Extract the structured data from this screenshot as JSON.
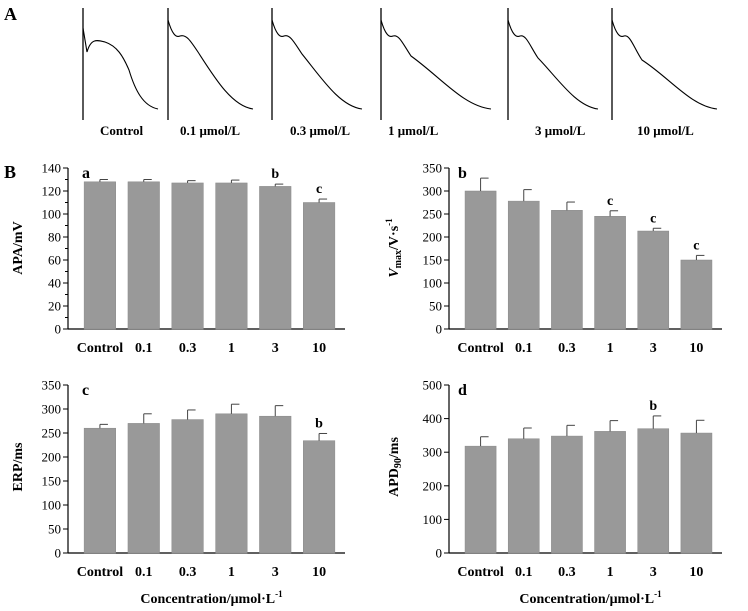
{
  "figure": {
    "panel_a_label": "A",
    "panel_b_label": "B"
  },
  "traces": {
    "labels": [
      "Control",
      "0.1 μmol/L",
      "0.3 μmol/L",
      "1 μmol/L",
      "3 μmol/L",
      "10 μmol/L"
    ]
  },
  "chart_data": [
    {
      "type": "bar",
      "panel": "a",
      "categories": [
        "Control",
        "0.1",
        "0.3",
        "1",
        "3",
        "10"
      ],
      "values": [
        128,
        128,
        127,
        127,
        124,
        110
      ],
      "errors": [
        2,
        2,
        2,
        2.5,
        2,
        3
      ],
      "significance": [
        "",
        "",
        "",
        "",
        "b",
        "c"
      ],
      "ylabel": "APA/mV",
      "xlabel": "",
      "ylim": [
        0,
        140
      ],
      "yticks": [
        0,
        10,
        20,
        30,
        40,
        50,
        60,
        70,
        80,
        90,
        100,
        110,
        120,
        130,
        140
      ],
      "ytick_labels": [
        "0",
        "",
        "20",
        "",
        "40",
        "",
        "60",
        "",
        "80",
        "",
        "100",
        "",
        "120",
        "",
        "140"
      ],
      "bar_color": "#999999"
    },
    {
      "type": "bar",
      "panel": "b",
      "categories": [
        "Control",
        "0.1",
        "0.3",
        "1",
        "3",
        "10"
      ],
      "values": [
        300,
        278,
        258,
        245,
        213,
        150
      ],
      "errors": [
        28,
        25,
        18,
        12,
        6,
        10
      ],
      "significance": [
        "",
        "",
        "",
        "c",
        "c",
        "c"
      ],
      "ylabel_main": "V",
      "ylabel_sub": "max",
      "ylabel_rest": "/V·s",
      "ylabel_sup": "-1",
      "xlabel": "",
      "ylim": [
        0,
        350
      ],
      "yticks": [
        0,
        50,
        100,
        150,
        200,
        250,
        300,
        350
      ],
      "ytick_labels": [
        "0",
        "50",
        "100",
        "150",
        "200",
        "250",
        "300",
        "350"
      ],
      "bar_color": "#999999"
    },
    {
      "type": "bar",
      "panel": "c",
      "categories": [
        "Control",
        "0.1",
        "0.3",
        "1",
        "3",
        "10"
      ],
      "values": [
        260,
        270,
        278,
        290,
        285,
        234
      ],
      "errors": [
        8,
        20,
        20,
        20,
        22,
        15
      ],
      "significance": [
        "",
        "",
        "",
        "",
        "",
        "b"
      ],
      "ylabel": "ERP/ms",
      "xlabel": "Concentration/μmol·L",
      "xlabel_sup": "-1",
      "ylim": [
        0,
        350
      ],
      "yticks": [
        0,
        50,
        100,
        150,
        200,
        250,
        300,
        350
      ],
      "ytick_labels": [
        "0",
        "50",
        "100",
        "150",
        "200",
        "250",
        "300",
        "350"
      ],
      "bar_color": "#999999"
    },
    {
      "type": "bar",
      "panel": "d",
      "categories": [
        "Control",
        "0.1",
        "0.3",
        "1",
        "3",
        "10"
      ],
      "values": [
        318,
        340,
        348,
        362,
        370,
        357
      ],
      "errors": [
        28,
        32,
        32,
        32,
        38,
        38
      ],
      "significance": [
        "",
        "",
        "",
        "",
        "b",
        ""
      ],
      "ylabel_main": "APD",
      "ylabel_sub": "90",
      "ylabel_rest": "/ms",
      "xlabel": "Concentration/μmol·L",
      "xlabel_sup": "-1",
      "ylim": [
        0,
        500
      ],
      "yticks": [
        0,
        100,
        200,
        300,
        400,
        500
      ],
      "ytick_labels": [
        "0",
        "100",
        "200",
        "300",
        "400",
        "500"
      ],
      "bar_color": "#999999"
    }
  ]
}
